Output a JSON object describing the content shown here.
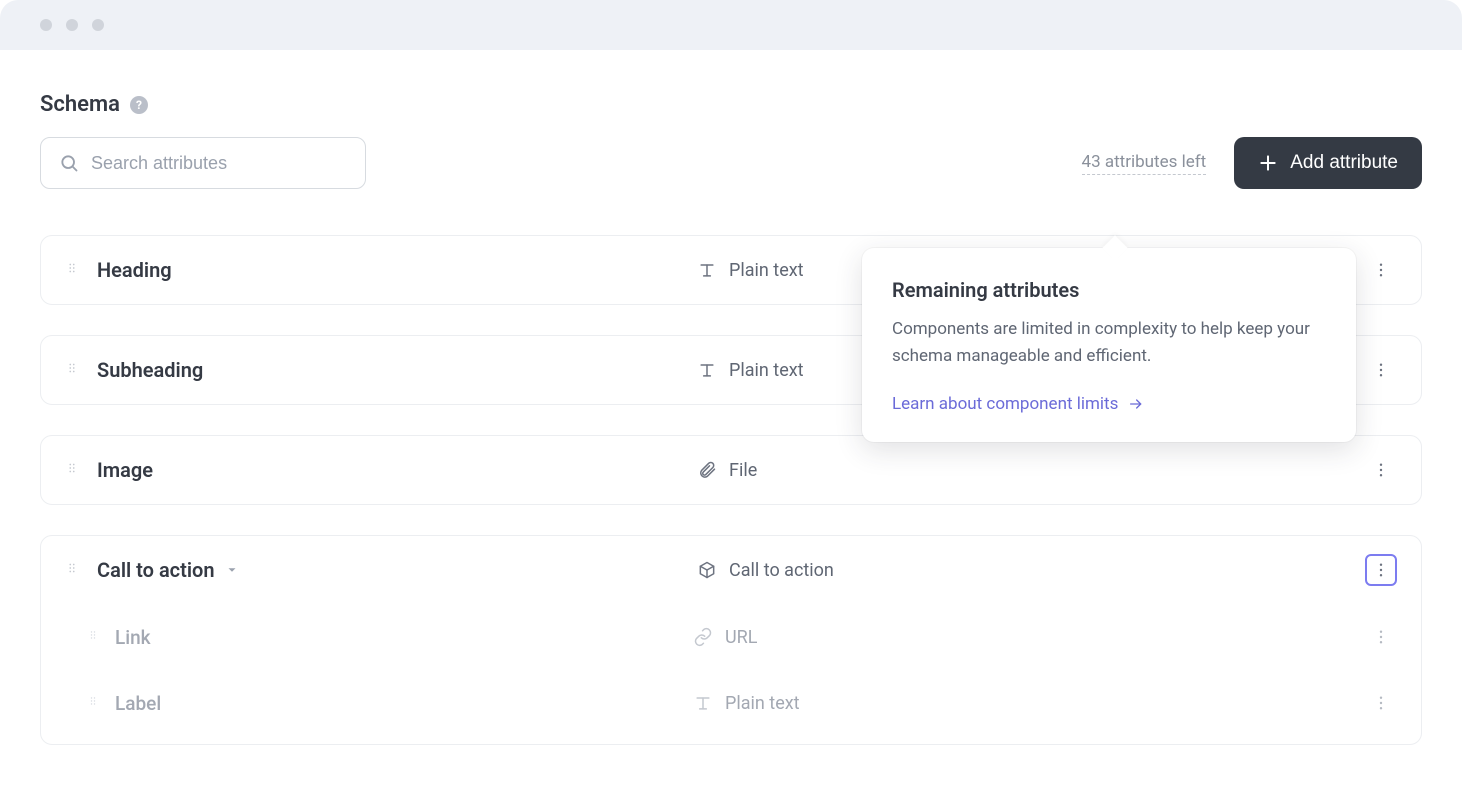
{
  "colors": {
    "window_chrome_bg": "#eef1f6",
    "traffic_dot": "#d0d4db",
    "text_primary": "#353a44",
    "text_secondary": "#5f6673",
    "text_muted": "#9aa1ad",
    "text_faded": "#a3a8b2",
    "border_light": "#eceef1",
    "border_input": "#d7dbe0",
    "button_dark_bg": "#343a44",
    "link_purple": "#6b6bd8",
    "highlight_border": "#7c7cf0",
    "help_bg": "#babfc9"
  },
  "header": {
    "title": "Schema"
  },
  "toolbar": {
    "search_placeholder": "Search attributes",
    "attributes_left": "43 attributes left",
    "add_button_label": "Add attribute"
  },
  "popover": {
    "title": "Remaining attributes",
    "body": "Components are limited in complexity to help keep your schema manageable and efficient.",
    "link_label": "Learn about component limits"
  },
  "attributes": [
    {
      "name": "Heading",
      "type_label": "Plain text",
      "type_icon": "text",
      "expandable": false,
      "children": []
    },
    {
      "name": "Subheading",
      "type_label": "Plain text",
      "type_icon": "text",
      "expandable": false,
      "children": []
    },
    {
      "name": "Image",
      "type_label": "File",
      "type_icon": "attachment",
      "expandable": false,
      "children": []
    },
    {
      "name": "Call to action",
      "type_label": "Call to action",
      "type_icon": "box",
      "expandable": true,
      "highlighted_more": true,
      "children": [
        {
          "name": "Link",
          "type_label": "URL",
          "type_icon": "link"
        },
        {
          "name": "Label",
          "type_label": "Plain text",
          "type_icon": "text"
        }
      ]
    }
  ]
}
